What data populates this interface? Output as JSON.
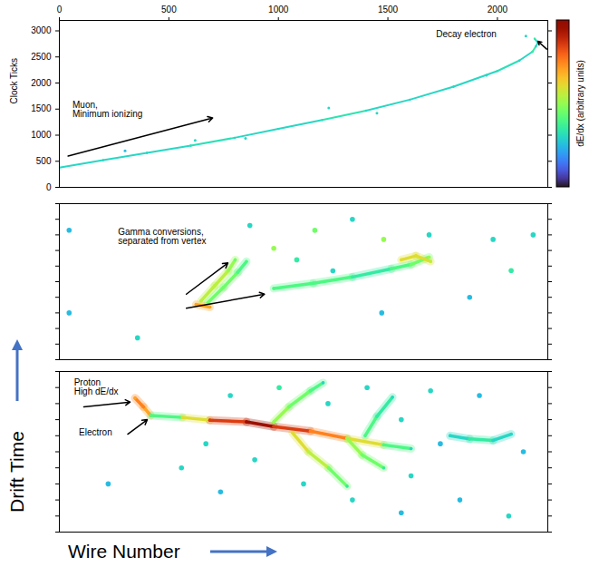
{
  "figure": {
    "x_label": "Wire Number",
    "y_label": "Drift Time"
  },
  "chart_data": [
    {
      "type": "scatter",
      "y_label": "Clock Ticks",
      "xlim": [
        0,
        2230
      ],
      "ylim": [
        0,
        3200
      ],
      "xticks": [
        0,
        500,
        1000,
        1500,
        2000
      ],
      "yticks": [
        0,
        500,
        1000,
        1500,
        2000,
        2500,
        3000
      ],
      "colorbar": {
        "label": "dE/dx (arbitrary units)",
        "range": [
          0,
          1
        ]
      },
      "tracks": [
        [
          [
            0,
            380,
            0.3
          ],
          [
            200,
            520,
            0.3
          ],
          [
            400,
            660,
            0.3
          ],
          [
            600,
            800,
            0.32
          ],
          [
            800,
            950,
            0.3
          ],
          [
            1000,
            1120,
            0.3
          ],
          [
            1200,
            1290,
            0.33
          ],
          [
            1400,
            1470,
            0.3
          ],
          [
            1600,
            1680,
            0.3
          ],
          [
            1800,
            1930,
            0.3
          ],
          [
            2000,
            2230,
            0.32
          ],
          [
            2100,
            2430,
            0.3
          ],
          [
            2160,
            2600,
            0.35
          ]
        ],
        [
          [
            2160,
            2600,
            0.35
          ],
          [
            2175,
            2700,
            0.3
          ],
          [
            2185,
            2770,
            0.3
          ],
          [
            2170,
            2850,
            0.35
          ]
        ]
      ],
      "hits": [
        [
          620,
          900,
          0.3
        ],
        [
          850,
          940,
          0.3
        ],
        [
          1230,
          1520,
          0.3
        ],
        [
          1450,
          1420,
          0.3
        ],
        [
          300,
          700,
          0.25
        ],
        [
          1950,
          2150,
          0.3
        ],
        [
          2130,
          2900,
          0.3
        ]
      ],
      "annotations": [
        {
          "lines": [
            "Muon,",
            "Minimum ionizing"
          ],
          "x": 60,
          "y": 1650,
          "arrows": [
            [
              40,
              600,
              700,
              1330
            ]
          ]
        },
        {
          "lines": [
            "Decay electron"
          ],
          "x": 1720,
          "y": 3000,
          "arrows": [
            [
              2225,
              2650,
              2185,
              2800
            ]
          ]
        }
      ]
    },
    {
      "type": "scatter",
      "tick_labels": false,
      "xlim": [
        0,
        100
      ],
      "ylim": [
        0,
        100
      ],
      "yticks": [
        0,
        10,
        20,
        30,
        40,
        50,
        60,
        70,
        80,
        90,
        100
      ],
      "tracks": [
        [
          [
            29.0,
            37.7,
            0.55
          ],
          [
            31.8,
            47.4,
            0.55
          ],
          [
            34.6,
            57.1,
            0.5
          ],
          [
            36.0,
            64.0,
            0.45
          ]
        ],
        [
          [
            30.4,
            36.6,
            0.45
          ],
          [
            33.6,
            46.3,
            0.45
          ],
          [
            36.5,
            56.0,
            0.4
          ],
          [
            38.3,
            62.9,
            0.4
          ]
        ],
        [
          [
            28.0,
            35.4,
            0.7
          ],
          [
            30.8,
            33.7,
            0.7
          ]
        ],
        [
          [
            43.9,
            45.7,
            0.4
          ],
          [
            52.0,
            49.0,
            0.4
          ],
          [
            60.0,
            53.0,
            0.35
          ],
          [
            68.0,
            58.3,
            0.4
          ],
          [
            72.0,
            61.0,
            0.45
          ],
          [
            75.7,
            65.7,
            0.5
          ]
        ],
        [
          [
            70.0,
            64.0,
            0.6
          ],
          [
            73.0,
            66.5,
            0.6
          ],
          [
            76.0,
            63.0,
            0.55
          ]
        ]
      ],
      "hits": [
        [
          43.9,
          71.4,
          0.5
        ],
        [
          48.6,
          64.0,
          0.35
        ],
        [
          52.3,
          82.9,
          0.45
        ],
        [
          56.0,
          57.0,
          0.3
        ],
        [
          66.4,
          77.1,
          0.5
        ],
        [
          75.7,
          80.0,
          0.3
        ],
        [
          88.8,
          77.1,
          0.3
        ],
        [
          92.5,
          57.1,
          0.35
        ],
        [
          97.0,
          80.0,
          0.3
        ],
        [
          16.0,
          14.0,
          0.3
        ],
        [
          60.0,
          90.0,
          0.3
        ],
        [
          84.0,
          40.0,
          0.25
        ],
        [
          39.0,
          86.0,
          0.3
        ],
        [
          66.0,
          30.0,
          0.25
        ],
        [
          2.0,
          83.0,
          0.25
        ],
        [
          2.0,
          30.0,
          0.25
        ]
      ],
      "annotations": [
        {
          "lines": [
            "Gamma conversions,",
            "separated from vertex"
          ],
          "x": 12,
          "y": 84,
          "arrows": [
            [
              26,
              42,
              34.5,
              62
            ],
            [
              26,
              33,
              42,
              42
            ]
          ]
        }
      ]
    },
    {
      "type": "scatter",
      "tick_labels": false,
      "xlim": [
        0,
        100
      ],
      "ylim": [
        0,
        100
      ],
      "yticks": [
        0,
        10,
        20,
        30,
        40,
        50,
        60,
        70,
        80,
        90,
        100
      ],
      "tracks": [
        [
          [
            18.7,
            72.6,
            0.7
          ],
          [
            17.2,
            78.0,
            0.75
          ],
          [
            15.5,
            83.5,
            0.7
          ]
        ],
        [
          [
            18.7,
            72.6,
            0.4
          ],
          [
            25.2,
            71.4,
            0.6
          ],
          [
            30.8,
            69.7,
            0.85
          ],
          [
            38.3,
            68.6,
            0.95
          ],
          [
            43.9,
            65.7,
            0.85
          ],
          [
            51.4,
            62.9,
            0.75
          ],
          [
            58.9,
            58.3,
            0.6
          ],
          [
            66.4,
            54.3,
            0.4
          ],
          [
            72.0,
            52.0,
            0.3
          ]
        ],
        [
          [
            43.9,
            68.6,
            0.5
          ],
          [
            47.0,
            78.0,
            0.45
          ],
          [
            51.4,
            88.0,
            0.4
          ],
          [
            54.0,
            93.0,
            0.3
          ]
        ],
        [
          [
            47.7,
            62.0,
            0.6
          ],
          [
            51.0,
            50.0,
            0.55
          ],
          [
            55.1,
            40.0,
            0.45
          ],
          [
            58.9,
            28.6,
            0.35
          ]
        ],
        [
          [
            58.9,
            58.3,
            0.5
          ],
          [
            62.0,
            48.0,
            0.45
          ],
          [
            66.4,
            40.0,
            0.35
          ]
        ],
        [
          [
            62.6,
            60.0,
            0.4
          ],
          [
            65.0,
            72.0,
            0.35
          ],
          [
            68.2,
            84.0,
            0.3
          ]
        ],
        [
          [
            80.0,
            60.0,
            0.3
          ],
          [
            84.0,
            58.0,
            0.35
          ],
          [
            88.8,
            57.1,
            0.3
          ],
          [
            92.5,
            61.0,
            0.3
          ]
        ]
      ],
      "hits": [
        [
          30,
          55,
          0.3
        ],
        [
          35,
          85,
          0.3
        ],
        [
          40,
          45,
          0.3
        ],
        [
          45,
          90,
          0.35
        ],
        [
          50,
          30,
          0.3
        ],
        [
          55,
          80,
          0.3
        ],
        [
          60,
          20,
          0.3
        ],
        [
          63,
          90,
          0.3
        ],
        [
          70,
          70,
          0.3
        ],
        [
          72,
          35,
          0.3
        ],
        [
          76,
          88,
          0.3
        ],
        [
          78,
          55,
          0.25
        ],
        [
          82,
          20,
          0.25
        ],
        [
          86,
          85,
          0.25
        ],
        [
          95,
          50,
          0.25
        ],
        [
          10,
          30,
          0.25
        ],
        [
          25,
          40,
          0.3
        ],
        [
          33,
          25,
          0.25
        ],
        [
          92,
          10,
          0.3
        ],
        [
          70,
          12,
          0.25
        ]
      ],
      "annotations": [
        {
          "lines": [
            "Proton",
            "High dE/dx"
          ],
          "x": 3,
          "y": 95,
          "arrows": [
            [
              5,
              78,
              14.5,
              81
            ]
          ]
        },
        {
          "lines": [
            "Electron"
          ],
          "x": 4,
          "y": 64,
          "arrows": [
            [
              14,
              61,
              18,
              70
            ]
          ]
        }
      ]
    }
  ]
}
